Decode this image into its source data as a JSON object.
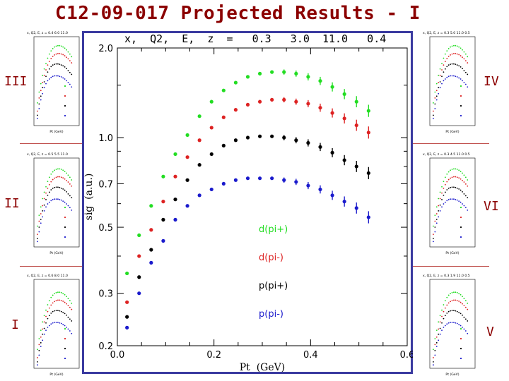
{
  "title": "C12-09-017 Projected Results - I",
  "panel_labels": [
    "III",
    "II",
    "I",
    "IV",
    "VI",
    "V"
  ],
  "colors": {
    "title": "#8b0000",
    "frame": "#3a3aa0",
    "rule": "#c0504d"
  },
  "chart_data": {
    "type": "scatter",
    "title": "x,  Q2,  E,  z  =   0.3   3.0  11.0   0.4",
    "xlabel": "Pt  (GeV)",
    "ylabel": "sig  (a.u.)",
    "x_scale": "linear",
    "y_scale": "log",
    "xlim": [
      0.0,
      0.6
    ],
    "ylim": [
      0.2,
      2.0
    ],
    "x_ticks": [
      "0.0",
      "0.2",
      "0.4",
      "0.6"
    ],
    "y_ticks": [
      {
        "value": 2.0,
        "label": "2.0"
      },
      {
        "value": 1.0,
        "label": "1.0"
      },
      {
        "value": 0.7,
        "label": "0.7"
      },
      {
        "value": 0.5,
        "label": "0.5"
      },
      {
        "value": 0.3,
        "label": "0.3"
      },
      {
        "value": 0.2,
        "label": "0.2"
      }
    ],
    "x": [
      0.02,
      0.045,
      0.07,
      0.095,
      0.12,
      0.145,
      0.17,
      0.195,
      0.22,
      0.245,
      0.27,
      0.295,
      0.32,
      0.345,
      0.37,
      0.395,
      0.42,
      0.445,
      0.47,
      0.495,
      0.52
    ],
    "series": [
      {
        "name": "d(pi+)",
        "color": "#22dd22",
        "values": [
          0.35,
          0.47,
          0.59,
          0.74,
          0.88,
          1.02,
          1.18,
          1.32,
          1.44,
          1.53,
          1.6,
          1.64,
          1.66,
          1.66,
          1.64,
          1.6,
          1.55,
          1.48,
          1.4,
          1.32,
          1.23
        ]
      },
      {
        "name": "d(pi-)",
        "color": "#dd2222",
        "values": [
          0.28,
          0.4,
          0.49,
          0.61,
          0.74,
          0.86,
          0.98,
          1.08,
          1.17,
          1.24,
          1.29,
          1.32,
          1.34,
          1.34,
          1.32,
          1.3,
          1.26,
          1.21,
          1.16,
          1.1,
          1.04
        ]
      },
      {
        "name": "p(pi+)",
        "color": "#000000",
        "values": [
          0.25,
          0.34,
          0.42,
          0.53,
          0.62,
          0.72,
          0.81,
          0.88,
          0.94,
          0.98,
          1.0,
          1.01,
          1.01,
          1.0,
          0.98,
          0.96,
          0.93,
          0.89,
          0.84,
          0.8,
          0.76
        ]
      },
      {
        "name": "p(pi-)",
        "color": "#1a1acc",
        "values": [
          0.23,
          0.3,
          0.38,
          0.45,
          0.53,
          0.59,
          0.64,
          0.67,
          0.7,
          0.72,
          0.73,
          0.73,
          0.73,
          0.72,
          0.71,
          0.69,
          0.67,
          0.64,
          0.61,
          0.58,
          0.54
        ]
      }
    ],
    "legend": {
      "placement": "lower-right",
      "entries": [
        "d(pi+)",
        "d(pi-)",
        "p(pi+)",
        "p(pi-)"
      ]
    },
    "grid": false
  },
  "thumbnails": [
    {
      "panel": "III",
      "header": "x, Q2, E, z =  0.4  6.0 11.0"
    },
    {
      "panel": "II",
      "header": "x, Q2, E, z =  0.5  5.5 11.0"
    },
    {
      "panel": "I",
      "header": "x, Q2, E, z =  0.6  8.0 11.0"
    },
    {
      "panel": "IV",
      "header": "x, Q2, E, z =  0.3  5.0 11.0  0.5"
    },
    {
      "panel": "VI",
      "header": "x, Q2, E, z =  0.3  4.5 11.0  0.5"
    },
    {
      "panel": "V",
      "header": "x, Q2, E, z =  0.3  1.9 11.0  0.5"
    }
  ],
  "thumb_xlabel": "Pt (GeV)"
}
